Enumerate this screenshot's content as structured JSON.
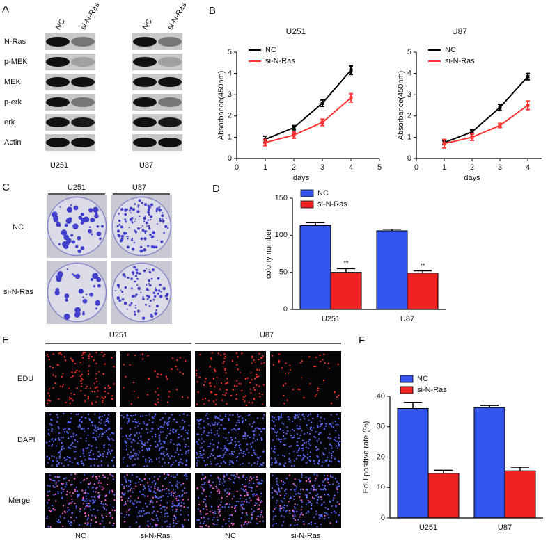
{
  "panel_labels": [
    "A",
    "B",
    "C",
    "D",
    "E",
    "F"
  ],
  "western_blot": {
    "lanes": [
      "NC",
      "si-N-Ras"
    ],
    "proteins": [
      "N-Ras",
      "p-MEK",
      "MEK",
      "p-erk",
      "erk",
      "Actin"
    ],
    "cell_lines": [
      "U251",
      "U87"
    ]
  },
  "colony_assay": {
    "cell_lines": [
      "U251",
      "U87"
    ],
    "conditions": [
      "NC",
      "si-N-Ras"
    ]
  },
  "edu_assay": {
    "cell_lines": [
      "U251",
      "U87"
    ],
    "stains": [
      "EDU",
      "DAPI",
      "Merge"
    ],
    "conditions": [
      "NC",
      "si-N-Ras",
      "NC",
      "si-N-Ras"
    ]
  },
  "chart_data": [
    {
      "type": "line",
      "title": "U251",
      "x_label": "days",
      "y_label": "Absorbance(450nm)",
      "x": [
        1,
        2,
        3,
        4
      ],
      "xlim": [
        0,
        5
      ],
      "xticks": [
        0,
        1,
        2,
        3,
        4,
        5
      ],
      "ylim": [
        0,
        5
      ],
      "yticks": [
        0,
        1,
        2,
        3,
        4,
        5
      ],
      "series": [
        {
          "name": "NC",
          "color": "#000000",
          "values": [
            0.9,
            1.45,
            2.6,
            4.15
          ],
          "errors": [
            0.15,
            0.1,
            0.15,
            0.2
          ]
        },
        {
          "name": "si-N-Ras",
          "color": "#ff3333",
          "values": [
            0.75,
            1.1,
            1.7,
            2.85
          ],
          "errors": [
            0.15,
            0.15,
            0.15,
            0.2
          ]
        }
      ]
    },
    {
      "type": "line",
      "title": "U87",
      "x_label": "days",
      "y_label": "Absorbance(450nm)",
      "x": [
        1,
        2,
        3,
        4
      ],
      "xlim": [
        0,
        4.5
      ],
      "xticks": [
        0,
        1,
        2,
        3,
        4
      ],
      "ylim": [
        0,
        5
      ],
      "yticks": [
        0,
        1,
        2,
        3,
        4,
        5
      ],
      "series": [
        {
          "name": "NC",
          "color": "#000000",
          "values": [
            0.75,
            1.25,
            2.4,
            3.85
          ],
          "errors": [
            0.1,
            0.1,
            0.15,
            0.15
          ]
        },
        {
          "name": "si-N-Ras",
          "color": "#ff3333",
          "values": [
            0.7,
            1.0,
            1.55,
            2.5
          ],
          "errors": [
            0.2,
            0.15,
            0.1,
            0.2
          ]
        }
      ]
    },
    {
      "type": "bar",
      "y_label": "colony  number",
      "categories": [
        "U251",
        "U87"
      ],
      "ylim": [
        0,
        150
      ],
      "yticks": [
        0,
        50,
        100,
        150
      ],
      "annotations": [
        "**",
        "**"
      ],
      "series": [
        {
          "name": "NC",
          "color": "#3355ee",
          "values": [
            113,
            106
          ],
          "errors": [
            4,
            2
          ]
        },
        {
          "name": "si-N-Ras",
          "color": "#ee2222",
          "values": [
            50,
            49
          ],
          "errors": [
            5,
            3
          ]
        }
      ]
    },
    {
      "type": "bar",
      "y_label": "EdU positive rate (%)",
      "categories": [
        "U251",
        "U87"
      ],
      "ylim": [
        0,
        40
      ],
      "yticks": [
        0,
        10,
        20,
        30,
        40
      ],
      "series": [
        {
          "name": "NC",
          "color": "#3355ee",
          "values": [
            36,
            36.3
          ],
          "errors": [
            2,
            0.7
          ]
        },
        {
          "name": "si-N-Ras",
          "color": "#ee2222",
          "values": [
            14.7,
            15.5
          ],
          "errors": [
            1,
            1.2
          ]
        }
      ]
    }
  ]
}
